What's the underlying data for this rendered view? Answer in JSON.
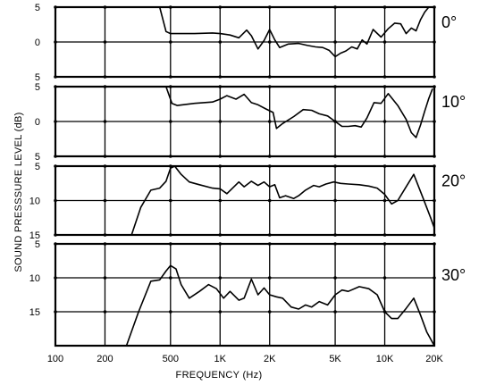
{
  "chart_data": {
    "type": "line",
    "xlabel": "FREQUENCY (Hz)",
    "ylabel": "SOUND PRESSSURE LEVEL (dB)",
    "x_scale": "log",
    "xlim": [
      100,
      20000
    ],
    "x_ticks": [
      {
        "value": 100,
        "label": "100"
      },
      {
        "value": 200,
        "label": "200"
      },
      {
        "value": 500,
        "label": "500"
      },
      {
        "value": 1000,
        "label": "1K"
      },
      {
        "value": 2000,
        "label": "2K"
      },
      {
        "value": 5000,
        "label": "5K"
      },
      {
        "value": 10000,
        "label": "10K"
      },
      {
        "value": 20000,
        "label": "20K"
      }
    ],
    "grid": true,
    "panels": [
      {
        "angle_label": "0°",
        "ylim": [
          5,
          -5
        ],
        "y_ticks": [
          {
            "value": 5,
            "label": "5"
          },
          {
            "value": 0,
            "label": "0"
          },
          {
            "value": -5,
            "label": "5"
          }
        ],
        "x": [
          430,
          470,
          500,
          700,
          900,
          1000,
          1150,
          1300,
          1450,
          1550,
          1700,
          1850,
          2000,
          2150,
          2300,
          2600,
          3000,
          3400,
          3800,
          4200,
          4600,
          5000,
          5400,
          5800,
          6300,
          6800,
          7300,
          7800,
          8500,
          9500,
          10500,
          11500,
          12500,
          13500,
          14500,
          15500,
          16500,
          17500,
          18500
        ],
        "y": [
          -5,
          -1.5,
          -1.2,
          -1.2,
          -1.3,
          -1.2,
          -1.0,
          -0.6,
          -1.7,
          -0.9,
          1.0,
          -0.2,
          -1.8,
          -0.3,
          0.8,
          0.3,
          0.2,
          0.5,
          0.7,
          0.8,
          1.2,
          2.1,
          1.6,
          1.3,
          0.7,
          1.0,
          -0.3,
          0.3,
          -1.8,
          -0.7,
          -1.9,
          -2.7,
          -2.6,
          -1.2,
          -2.0,
          -1.6,
          -3.2,
          -4.3,
          -5
        ]
      },
      {
        "angle_label": "10°",
        "ylim": [
          5,
          -5
        ],
        "y_ticks": [
          {
            "value": 5,
            "label": "5"
          },
          {
            "value": 0,
            "label": "0"
          },
          {
            "value": -5,
            "label": "5"
          }
        ],
        "x": [
          470,
          510,
          550,
          700,
          900,
          1000,
          1100,
          1250,
          1400,
          1550,
          1700,
          1900,
          2100,
          2200,
          2400,
          2800,
          3200,
          3600,
          4000,
          4500,
          5000,
          5500,
          6000,
          6600,
          7200,
          7800,
          8600,
          9500,
          10500,
          12000,
          13500,
          14500,
          15500,
          16500,
          17500,
          18500,
          19500
        ],
        "y": [
          -5,
          -2.6,
          -2.3,
          -2.6,
          -2.8,
          -3.2,
          -3.7,
          -3.2,
          -3.9,
          -2.7,
          -2.4,
          -1.8,
          -1.3,
          1.0,
          0.3,
          -0.7,
          -1.7,
          -1.6,
          -1.1,
          -0.8,
          0,
          0.7,
          0.7,
          0.6,
          0.8,
          -0.5,
          -2.7,
          -2.6,
          -4.0,
          -2.3,
          -0.3,
          1.6,
          2.3,
          0.5,
          -1.5,
          -3.3,
          -4.7
        ]
      },
      {
        "angle_label": "20°",
        "ylim": [
          15,
          5
        ],
        "y_ticks": [
          {
            "value": 5,
            "label": "5"
          },
          {
            "value": 10,
            "label": "10"
          },
          {
            "value": 15,
            "label": "15"
          }
        ],
        "x": [
          290,
          330,
          380,
          430,
          470,
          500,
          530,
          580,
          650,
          750,
          900,
          1000,
          1100,
          1300,
          1400,
          1550,
          1700,
          1850,
          2000,
          2150,
          2300,
          2500,
          2800,
          3000,
          3300,
          3700,
          4000,
          4400,
          4900,
          5400,
          6000,
          7000,
          8000,
          9000,
          10000,
          11000,
          12000,
          13500,
          15000,
          17000,
          19000,
          20000
        ],
        "y": [
          15,
          11,
          8.5,
          8.2,
          7.2,
          5.3,
          5.0,
          6.2,
          7.3,
          7.7,
          8.2,
          8.3,
          9.0,
          7.3,
          8.0,
          7.2,
          7.8,
          7.3,
          8.0,
          7.7,
          9.6,
          9.3,
          9.7,
          9.3,
          8.5,
          7.8,
          8.0,
          7.6,
          7.3,
          7.5,
          7.6,
          7.7,
          7.9,
          8.2,
          9.1,
          10.5,
          10.0,
          8.0,
          6.2,
          9.5,
          12.5,
          14
        ]
      },
      {
        "angle_label": "30°",
        "ylim": [
          20,
          5
        ],
        "y_ticks": [
          {
            "value": 5,
            "label": "5"
          },
          {
            "value": 10,
            "label": "10"
          },
          {
            "value": 15,
            "label": "15"
          }
        ],
        "x": [
          270,
          320,
          380,
          430,
          470,
          500,
          540,
          580,
          650,
          750,
          850,
          950,
          1050,
          1150,
          1300,
          1400,
          1550,
          1700,
          1850,
          2000,
          2200,
          2400,
          2700,
          3000,
          3300,
          3600,
          4000,
          4500,
          5000,
          5500,
          6000,
          7000,
          8000,
          9000,
          10000,
          11000,
          12000,
          13500,
          15000,
          16500,
          18000,
          20000
        ],
        "y": [
          20,
          15,
          10.5,
          10.3,
          9.0,
          8.2,
          8.7,
          11,
          13.0,
          12.0,
          11.0,
          11.6,
          13.0,
          12.0,
          13.3,
          13.0,
          10.2,
          12.5,
          11.5,
          12.5,
          12.8,
          13.0,
          14.3,
          14.6,
          14.0,
          14.3,
          13.5,
          14.0,
          12.5,
          11.8,
          12.0,
          11.3,
          11.6,
          12.5,
          15.0,
          16.0,
          16.0,
          14.5,
          13.0,
          15.5,
          18.0,
          20
        ]
      }
    ]
  }
}
